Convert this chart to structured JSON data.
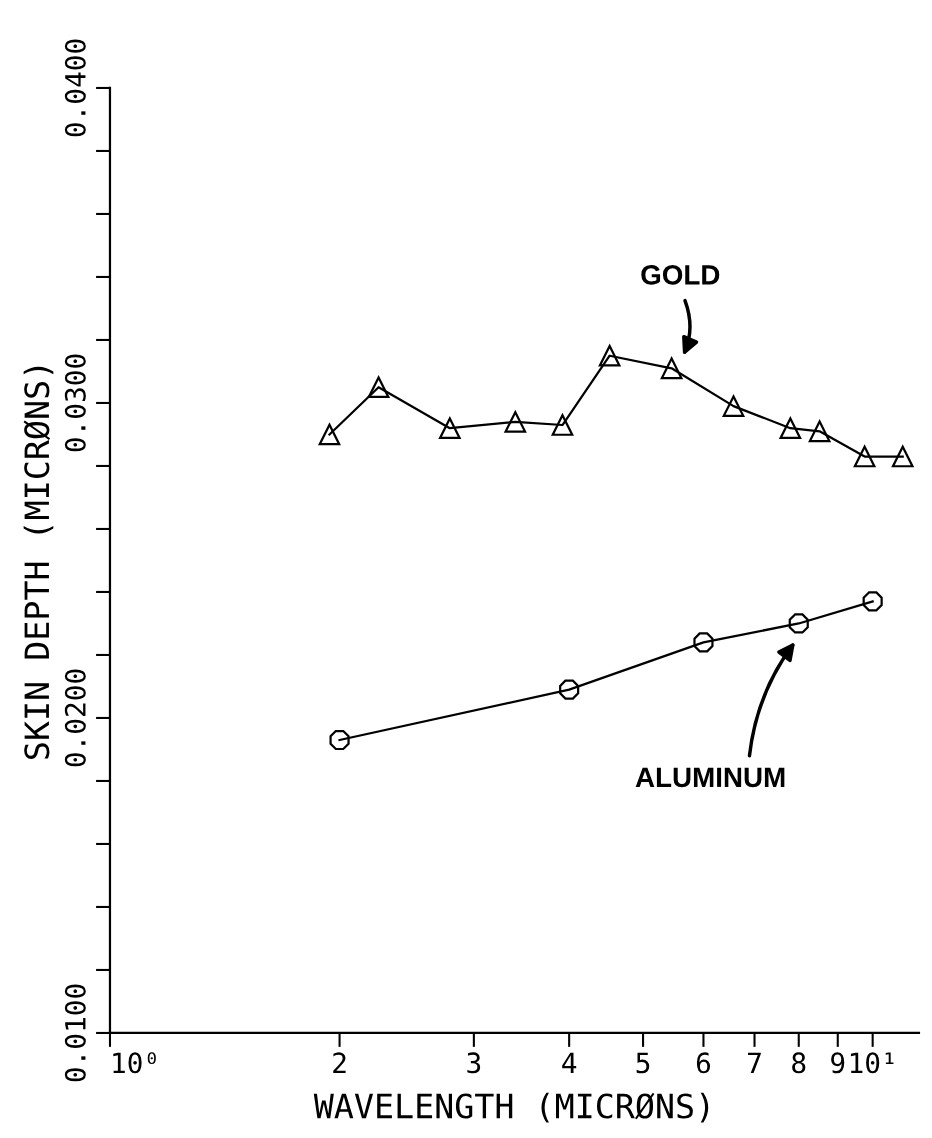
{
  "chart_data": {
    "type": "line",
    "xlabel": "WAVELENGTH (MICRØNS)",
    "ylabel": "SKIN DEPTH (MICRØNS)",
    "log": "x",
    "xlim": [
      1,
      11.5
    ],
    "xticks": [
      {
        "value": 1,
        "label": "10⁰"
      },
      2,
      3,
      4,
      5,
      6,
      7,
      8,
      9,
      {
        "value": 10,
        "label": "10¹"
      }
    ],
    "ylim": [
      0.01,
      0.04
    ],
    "yticks": [
      {
        "value": 0.01,
        "label": "0.0100"
      },
      {
        "value": 0.012,
        "label": null
      },
      {
        "value": 0.014,
        "label": null
      },
      {
        "value": 0.016,
        "label": null
      },
      {
        "value": 0.018,
        "label": null
      },
      {
        "value": 0.02,
        "label": "0.0200"
      },
      {
        "value": 0.022,
        "label": null
      },
      {
        "value": 0.024,
        "label": null
      },
      {
        "value": 0.026,
        "label": null
      },
      {
        "value": 0.028,
        "label": null
      },
      {
        "value": 0.03,
        "label": "0.0300"
      },
      {
        "value": 0.032,
        "label": null
      },
      {
        "value": 0.034,
        "label": null
      },
      {
        "value": 0.036,
        "label": null
      },
      {
        "value": 0.038,
        "label": null
      },
      {
        "value": 0.04,
        "label": "0.0400"
      }
    ],
    "grid": false,
    "legend": false,
    "series": [
      {
        "color": "#000000",
        "marker": "triangle",
        "x": [
          1.94,
          2.25,
          2.79,
          3.4,
          3.92,
          4.52,
          5.45,
          6.57,
          7.8,
          8.52,
          9.76,
          10.95
        ],
        "values": [
          0.029,
          0.0305,
          0.0292,
          0.0294,
          0.0293,
          0.0315,
          0.0311,
          0.0299,
          0.0292,
          0.0291,
          0.0283,
          0.0283
        ]
      },
      {
        "color": "#000000",
        "marker": "circle",
        "x": [
          2,
          4,
          6,
          8,
          10
        ],
        "values": [
          0.0193,
          0.0209,
          0.0224,
          0.023,
          0.0237
        ]
      }
    ],
    "annotations": [
      "GOLD",
      "ALUMINUM"
    ]
  }
}
